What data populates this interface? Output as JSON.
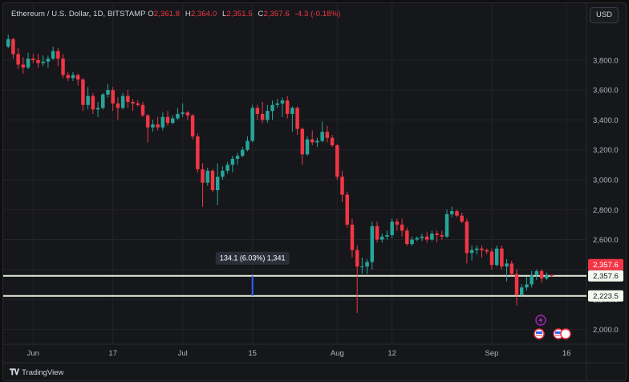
{
  "header": {
    "symbol": "Ethereum / U.S. Dollar, 1D, BITSTAMP",
    "open_label": "O",
    "open": "2,361.8",
    "high_label": "H",
    "high": "2,364.0",
    "low_label": "L",
    "low": "2,351.5",
    "close_label": "C",
    "close": "2,357.6",
    "change": "-4.3 (-0.18%)"
  },
  "currency_button": "USD",
  "branding": "TradingView",
  "colors": {
    "up": "#26a69a",
    "down": "#f23645",
    "hline": "#e8eedc",
    "measure": "#2962ff",
    "event": "#9c27b0"
  },
  "chart_data": {
    "type": "candlestick",
    "title": "Ethereum / U.S. Dollar, 1D, BITSTAMP",
    "ylim": [
      1900,
      4030
    ],
    "y_ticks": [
      2000,
      2200,
      2400,
      2600,
      2800,
      3000,
      3200,
      3400,
      3600,
      3800
    ],
    "y_tick_labels": [
      "2,000.0",
      "2,200.0",
      "2,400.0",
      "2,600.0",
      "2,800.0",
      "3,000.0",
      "3,200.0",
      "3,400.0",
      "3,600.0",
      "3,800.0"
    ],
    "x_ticks": [
      {
        "date": "2024-06-01",
        "label": "Jun"
      },
      {
        "date": "2024-06-17",
        "label": "17"
      },
      {
        "date": "2024-07-01",
        "label": "Jul"
      },
      {
        "date": "2024-07-15",
        "label": "15"
      },
      {
        "date": "2024-08-01",
        "label": "Aug"
      },
      {
        "date": "2024-08-12",
        "label": "12"
      },
      {
        "date": "2024-09-01",
        "label": "Sep"
      },
      {
        "date": "2024-09-16",
        "label": "16"
      }
    ],
    "x_range": [
      "2024-05-26",
      "2024-09-20"
    ],
    "grid": true,
    "candles": [
      [
        "2024-05-27",
        3890,
        3970,
        3880,
        3940
      ],
      [
        "2024-05-28",
        3940,
        3950,
        3810,
        3840
      ],
      [
        "2024-05-29",
        3840,
        3880,
        3740,
        3770
      ],
      [
        "2024-05-30",
        3770,
        3820,
        3710,
        3750
      ],
      [
        "2024-05-31",
        3750,
        3850,
        3740,
        3810
      ],
      [
        "2024-06-01",
        3810,
        3840,
        3780,
        3800
      ],
      [
        "2024-06-02",
        3800,
        3840,
        3750,
        3780
      ],
      [
        "2024-06-03",
        3780,
        3830,
        3760,
        3790
      ],
      [
        "2024-06-04",
        3790,
        3830,
        3750,
        3810
      ],
      [
        "2024-06-05",
        3810,
        3890,
        3800,
        3860
      ],
      [
        "2024-06-06",
        3860,
        3880,
        3760,
        3810
      ],
      [
        "2024-06-07",
        3810,
        3840,
        3680,
        3700
      ],
      [
        "2024-06-08",
        3700,
        3720,
        3660,
        3680
      ],
      [
        "2024-06-09",
        3680,
        3720,
        3660,
        3700
      ],
      [
        "2024-06-10",
        3700,
        3710,
        3630,
        3670
      ],
      [
        "2024-06-11",
        3670,
        3680,
        3460,
        3500
      ],
      [
        "2024-06-12",
        3500,
        3620,
        3470,
        3560
      ],
      [
        "2024-06-13",
        3560,
        3580,
        3440,
        3470
      ],
      [
        "2024-06-14",
        3470,
        3520,
        3420,
        3480
      ],
      [
        "2024-06-15",
        3480,
        3580,
        3470,
        3570
      ],
      [
        "2024-06-16",
        3570,
        3640,
        3550,
        3600
      ],
      [
        "2024-06-17",
        3600,
        3620,
        3460,
        3510
      ],
      [
        "2024-06-18",
        3510,
        3550,
        3400,
        3480
      ],
      [
        "2024-06-19",
        3480,
        3580,
        3470,
        3560
      ],
      [
        "2024-06-20",
        3560,
        3600,
        3480,
        3520
      ],
      [
        "2024-06-21",
        3520,
        3540,
        3460,
        3510
      ],
      [
        "2024-06-22",
        3510,
        3530,
        3490,
        3500
      ],
      [
        "2024-06-23",
        3500,
        3520,
        3420,
        3430
      ],
      [
        "2024-06-24",
        3430,
        3440,
        3250,
        3350
      ],
      [
        "2024-06-25",
        3350,
        3400,
        3320,
        3370
      ],
      [
        "2024-06-26",
        3370,
        3420,
        3330,
        3350
      ],
      [
        "2024-06-27",
        3350,
        3450,
        3330,
        3420
      ],
      [
        "2024-06-28",
        3420,
        3460,
        3360,
        3380
      ],
      [
        "2024-06-29",
        3380,
        3430,
        3370,
        3410
      ],
      [
        "2024-06-30",
        3410,
        3480,
        3400,
        3440
      ],
      [
        "2024-07-01",
        3440,
        3510,
        3420,
        3450
      ],
      [
        "2024-07-02",
        3450,
        3460,
        3400,
        3430
      ],
      [
        "2024-07-03",
        3430,
        3440,
        3270,
        3290
      ],
      [
        "2024-07-04",
        3290,
        3310,
        3050,
        3070
      ],
      [
        "2024-07-05",
        3070,
        3110,
        2820,
        2980
      ],
      [
        "2024-07-06",
        2980,
        3080,
        2960,
        3060
      ],
      [
        "2024-07-07",
        3060,
        3070,
        2920,
        2930
      ],
      [
        "2024-07-08",
        2930,
        3110,
        2830,
        3020
      ],
      [
        "2024-07-09",
        3020,
        3090,
        3000,
        3060
      ],
      [
        "2024-07-10",
        3060,
        3120,
        3040,
        3100
      ],
      [
        "2024-07-11",
        3100,
        3160,
        3050,
        3140
      ],
      [
        "2024-07-12",
        3140,
        3180,
        3100,
        3160
      ],
      [
        "2024-07-13",
        3160,
        3220,
        3150,
        3200
      ],
      [
        "2024-07-14",
        3200,
        3290,
        3190,
        3260
      ],
      [
        "2024-07-15",
        3260,
        3500,
        3250,
        3480
      ],
      [
        "2024-07-16",
        3480,
        3500,
        3400,
        3440
      ],
      [
        "2024-07-17",
        3440,
        3520,
        3380,
        3400
      ],
      [
        "2024-07-18",
        3400,
        3500,
        3380,
        3460
      ],
      [
        "2024-07-19",
        3460,
        3530,
        3400,
        3500
      ],
      [
        "2024-07-20",
        3500,
        3540,
        3480,
        3510
      ],
      [
        "2024-07-21",
        3510,
        3550,
        3420,
        3530
      ],
      [
        "2024-07-22",
        3530,
        3560,
        3410,
        3440
      ],
      [
        "2024-07-23",
        3440,
        3490,
        3320,
        3480
      ],
      [
        "2024-07-24",
        3480,
        3490,
        3300,
        3340
      ],
      [
        "2024-07-25",
        3340,
        3350,
        3100,
        3170
      ],
      [
        "2024-07-26",
        3170,
        3290,
        3160,
        3270
      ],
      [
        "2024-07-27",
        3270,
        3330,
        3230,
        3250
      ],
      [
        "2024-07-28",
        3250,
        3280,
        3220,
        3260
      ],
      [
        "2024-07-29",
        3260,
        3390,
        3250,
        3320
      ],
      [
        "2024-07-30",
        3320,
        3360,
        3250,
        3280
      ],
      [
        "2024-07-31",
        3280,
        3300,
        3220,
        3230
      ],
      [
        "2024-08-01",
        3230,
        3240,
        3000,
        3020
      ],
      [
        "2024-08-02",
        3020,
        3060,
        2850,
        2900
      ],
      [
        "2024-08-03",
        2900,
        2920,
        2680,
        2700
      ],
      [
        "2024-08-04",
        2700,
        2740,
        2480,
        2530
      ],
      [
        "2024-08-05",
        2530,
        2560,
        2110,
        2420
      ],
      [
        "2024-08-06",
        2420,
        2480,
        2370,
        2420
      ],
      [
        "2024-08-07",
        2420,
        2470,
        2370,
        2450
      ],
      [
        "2024-08-08",
        2450,
        2720,
        2400,
        2690
      ],
      [
        "2024-08-09",
        2690,
        2720,
        2580,
        2600
      ],
      [
        "2024-08-10",
        2600,
        2640,
        2580,
        2620
      ],
      [
        "2024-08-11",
        2620,
        2660,
        2600,
        2630
      ],
      [
        "2024-08-12",
        2630,
        2740,
        2610,
        2720
      ],
      [
        "2024-08-13",
        2720,
        2740,
        2660,
        2700
      ],
      [
        "2024-08-14",
        2700,
        2740,
        2620,
        2660
      ],
      [
        "2024-08-15",
        2660,
        2680,
        2560,
        2570
      ],
      [
        "2024-08-16",
        2570,
        2620,
        2560,
        2600
      ],
      [
        "2024-08-17",
        2600,
        2620,
        2590,
        2610
      ],
      [
        "2024-08-18",
        2610,
        2640,
        2590,
        2620
      ],
      [
        "2024-08-19",
        2620,
        2650,
        2580,
        2600
      ],
      [
        "2024-08-20",
        2600,
        2660,
        2590,
        2640
      ],
      [
        "2024-08-21",
        2640,
        2660,
        2580,
        2630
      ],
      [
        "2024-08-22",
        2630,
        2660,
        2600,
        2620
      ],
      [
        "2024-08-23",
        2620,
        2800,
        2610,
        2770
      ],
      [
        "2024-08-24",
        2770,
        2820,
        2750,
        2790
      ],
      [
        "2024-08-25",
        2790,
        2800,
        2750,
        2760
      ],
      [
        "2024-08-26",
        2760,
        2780,
        2710,
        2720
      ],
      [
        "2024-08-27",
        2720,
        2740,
        2440,
        2510
      ],
      [
        "2024-08-28",
        2510,
        2560,
        2460,
        2530
      ],
      [
        "2024-08-29",
        2530,
        2560,
        2500,
        2540
      ],
      [
        "2024-08-30",
        2540,
        2560,
        2480,
        2530
      ],
      [
        "2024-08-31",
        2530,
        2540,
        2500,
        2520
      ],
      [
        "2024-09-01",
        2520,
        2540,
        2400,
        2430
      ],
      [
        "2024-09-02",
        2430,
        2560,
        2420,
        2540
      ],
      [
        "2024-09-03",
        2540,
        2560,
        2400,
        2420
      ],
      [
        "2024-09-04",
        2420,
        2470,
        2320,
        2440
      ],
      [
        "2024-09-05",
        2440,
        2460,
        2360,
        2370
      ],
      [
        "2024-09-06",
        2370,
        2400,
        2160,
        2230
      ],
      [
        "2024-09-07",
        2230,
        2300,
        2220,
        2280
      ],
      [
        "2024-09-08",
        2280,
        2350,
        2260,
        2300
      ],
      [
        "2024-09-09",
        2300,
        2390,
        2280,
        2360
      ],
      [
        "2024-09-10",
        2360,
        2400,
        2330,
        2390
      ],
      [
        "2024-09-11",
        2390,
        2400,
        2310,
        2340
      ],
      [
        "2024-09-12",
        2340,
        2380,
        2330,
        2360
      ],
      [
        "2024-09-13",
        2361.8,
        2364.0,
        2351.5,
        2357.6
      ]
    ],
    "horizontal_lines": [
      {
        "value": 2357.6,
        "label": "2,357.6"
      },
      {
        "value": 2223.5,
        "label": "2,223.5"
      }
    ],
    "price_marker": {
      "value": 2357.6,
      "label": "2,357.6"
    },
    "measure": {
      "date": "2024-07-15",
      "from": 2223.5,
      "to": 2357.6,
      "label": "134.1 (6.03%) 1,341"
    }
  }
}
